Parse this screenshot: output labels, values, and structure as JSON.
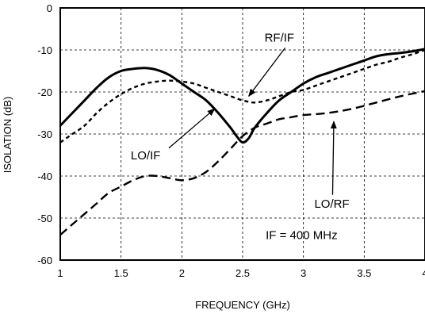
{
  "chart_data": {
    "type": "line",
    "xlabel": "FREQUENCY (GHz)",
    "ylabel": "ISOLATION (dB)",
    "xlim": [
      1,
      4
    ],
    "ylim": [
      -60,
      0
    ],
    "x_ticks": [
      1,
      1.5,
      2,
      2.5,
      3,
      3.5,
      4
    ],
    "x_tick_labels": [
      "1",
      "1.5",
      "2",
      "2.5",
      "3",
      "3.5",
      "4"
    ],
    "y_ticks": [
      0,
      -10,
      -20,
      -30,
      -40,
      -50,
      -60
    ],
    "y_tick_labels": [
      "0",
      "-10",
      "-20",
      "-30",
      "-40",
      "-50",
      "-60"
    ],
    "grid": true,
    "series": [
      {
        "name": "LO/IF",
        "style": "solid",
        "color": "#000000",
        "x": [
          1.0,
          1.1,
          1.2,
          1.3,
          1.4,
          1.5,
          1.6,
          1.7,
          1.8,
          1.9,
          2.0,
          2.1,
          2.2,
          2.3,
          2.4,
          2.45,
          2.5,
          2.55,
          2.6,
          2.7,
          2.8,
          2.9,
          3.0,
          3.1,
          3.2,
          3.3,
          3.4,
          3.5,
          3.6,
          3.7,
          3.8,
          3.9,
          4.0
        ],
        "y": [
          -28,
          -25,
          -22,
          -19,
          -16.5,
          -15,
          -14.5,
          -14.3,
          -14.8,
          -16,
          -18,
          -20,
          -22,
          -25,
          -28.5,
          -30.5,
          -32,
          -31,
          -28.5,
          -25,
          -22,
          -20,
          -18,
          -16.5,
          -15.5,
          -14.5,
          -13.5,
          -12.5,
          -11.5,
          -11,
          -10.7,
          -10.3,
          -9.8
        ]
      },
      {
        "name": "RF/IF",
        "style": "dashed",
        "color": "#000000",
        "x": [
          1.0,
          1.1,
          1.2,
          1.3,
          1.4,
          1.5,
          1.6,
          1.7,
          1.8,
          1.9,
          2.0,
          2.1,
          2.2,
          2.3,
          2.4,
          2.5,
          2.6,
          2.7,
          2.8,
          2.9,
          3.0,
          3.1,
          3.2,
          3.3,
          3.4,
          3.5,
          3.6,
          3.7,
          3.8,
          3.9,
          4.0
        ],
        "y": [
          -32,
          -30,
          -28,
          -25,
          -22.5,
          -20.5,
          -19,
          -18,
          -17.5,
          -17.3,
          -17.5,
          -18,
          -19,
          -20,
          -21,
          -22,
          -22.5,
          -22,
          -21,
          -20,
          -19.5,
          -18.5,
          -17.5,
          -16.5,
          -15.5,
          -14.5,
          -13.5,
          -12.8,
          -11.8,
          -11,
          -10
        ]
      },
      {
        "name": "LO/RF",
        "style": "long-dashed",
        "color": "#000000",
        "x": [
          1.0,
          1.1,
          1.2,
          1.3,
          1.4,
          1.5,
          1.6,
          1.7,
          1.8,
          1.9,
          2.0,
          2.1,
          2.2,
          2.3,
          2.4,
          2.5,
          2.6,
          2.7,
          2.8,
          2.9,
          3.0,
          3.2,
          3.4,
          3.6,
          3.8,
          4.0
        ],
        "y": [
          -54,
          -51.5,
          -49,
          -46.5,
          -44,
          -42.5,
          -41,
          -40,
          -40,
          -40.5,
          -41,
          -40.5,
          -39,
          -36.5,
          -33.5,
          -30.5,
          -28.5,
          -27.5,
          -26.5,
          -26,
          -25.5,
          -25,
          -24,
          -22.5,
          -21,
          -19.8
        ]
      }
    ],
    "annotations": [
      {
        "text": "RF/IF",
        "target_series": "RF/IF",
        "tx": 2.68,
        "ty": -8,
        "ax": 2.55,
        "ay": -21
      },
      {
        "text": "LO/IF",
        "target_series": "LO/IF",
        "tx": 1.58,
        "ty": -36,
        "ax": 2.27,
        "ay": -24
      },
      {
        "text": "LO/RF",
        "target_series": "LO/RF",
        "tx": 3.09,
        "ty": -47.5,
        "ax": 3.25,
        "ay": -27
      },
      {
        "text": "IF = 400 MHz",
        "target_series": "",
        "tx": 2.69,
        "ty": -55
      }
    ]
  }
}
